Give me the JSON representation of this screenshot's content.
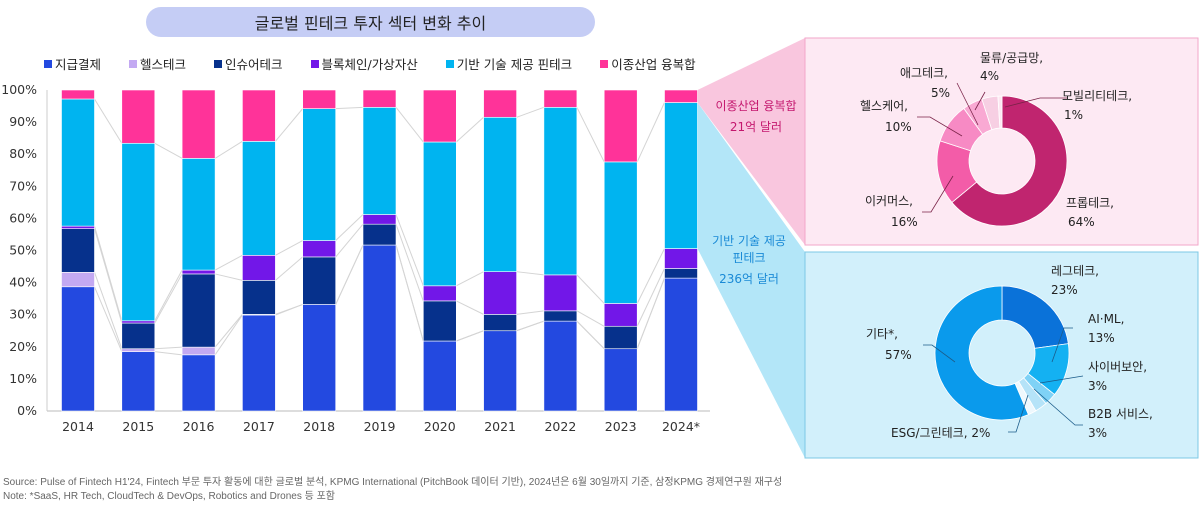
{
  "title": "글로벌 핀테크 투자 섹터 변화 추이",
  "legend": [
    {
      "label": "지급결제",
      "color": "#2349e0"
    },
    {
      "label": "헬스테크",
      "color": "#c3a9f2"
    },
    {
      "label": "인슈어테크",
      "color": "#06318c"
    },
    {
      "label": "블록체인/가상자산",
      "color": "#7217e8"
    },
    {
      "label": "기반 기술 제공 핀테크",
      "color": "#00b4f0"
    },
    {
      "label": "이종산업 융복합",
      "color": "#ff3399"
    }
  ],
  "chart_data": [
    {
      "type": "bar",
      "stacked": true,
      "title": "글로벌 핀테크 투자 섹터 변화 추이",
      "xlabel": "",
      "ylabel": "",
      "ylim": [
        0,
        100
      ],
      "yticks": [
        "0%",
        "10%",
        "20%",
        "30%",
        "40%",
        "50%",
        "60%",
        "70%",
        "80%",
        "90%",
        "100%"
      ],
      "categories": [
        "2014",
        "2015",
        "2016",
        "2017",
        "2018",
        "2019",
        "2020",
        "2021",
        "2022",
        "2023",
        "2024*"
      ],
      "series": [
        {
          "name": "지급결제",
          "values": [
            38.7,
            18.5,
            17.5,
            29.9,
            33.2,
            51.7,
            21.8,
            25.0,
            28.0,
            19.4,
            41.4
          ]
        },
        {
          "name": "헬스테크",
          "values": [
            4.5,
            0.9,
            2.4,
            0.2,
            0,
            0,
            0,
            0,
            0,
            0,
            0
          ]
        },
        {
          "name": "인슈어테크",
          "values": [
            13.6,
            8.0,
            22.8,
            10.6,
            14.8,
            6.5,
            12.5,
            5.1,
            3.2,
            7.0,
            3.0
          ]
        },
        {
          "name": "블록체인/가상자산",
          "values": [
            0.8,
            0.7,
            1.2,
            7.8,
            5.1,
            3.0,
            4.7,
            13.3,
            11.2,
            7.1,
            6.2
          ]
        },
        {
          "name": "기반 기술 제공 핀테크",
          "values": [
            39.6,
            55.3,
            34.8,
            35.5,
            41.1,
            33.4,
            44.8,
            48.1,
            52.2,
            44.1,
            45.5
          ]
        },
        {
          "name": "이종산업 융복합",
          "values": [
            2.8,
            16.6,
            21.3,
            16.0,
            5.8,
            5.4,
            16.2,
            8.5,
            5.4,
            22.4,
            3.9
          ]
        }
      ],
      "legend_position": "top",
      "grid": false
    },
    {
      "type": "pie",
      "donut": true,
      "title": "이종산업 융복합 21억 달러",
      "labels": [
        "프롭테크",
        "이커머스",
        "헬스케어",
        "애그테크",
        "물류/공급망",
        "모빌리티테크"
      ],
      "values": [
        64,
        16,
        10,
        5,
        4,
        1
      ],
      "colors": [
        "#c0256f",
        "#f35ca8",
        "#f78ac4",
        "#f9a9d3",
        "#f7cfe3",
        "#fde8f2"
      ]
    },
    {
      "type": "pie",
      "donut": true,
      "title": "기반 기술 제공 핀테크 236억 달러",
      "labels": [
        "레그테크",
        "AI·ML",
        "사이버보안",
        "B2B 서비스",
        "ESG/그린테크",
        "기타*"
      ],
      "values": [
        23,
        13,
        3,
        3,
        2,
        57
      ],
      "colors": [
        "#0a72d9",
        "#14b1f2",
        "#7fd2f6",
        "#b5e3f8",
        "#eef8fd",
        "#0a9aec"
      ]
    }
  ],
  "callouts": {
    "pink_line1": "이종산업 융복합",
    "pink_line2": "21억 달러",
    "blue_line1": "기반 기술 제공",
    "blue_line2": "핀테크",
    "blue_line3": "236억 달러"
  },
  "pie_labels": {
    "pink": [
      {
        "name": "물류/공급망,",
        "pct": "4%"
      },
      {
        "name": "애그테크,",
        "pct": "5%"
      },
      {
        "name": "모빌리티테크,",
        "pct": "1%"
      },
      {
        "name": "헬스케어,",
        "pct": "10%"
      },
      {
        "name": "이커머스,",
        "pct": "16%"
      },
      {
        "name": "프롭테크,",
        "pct": "64%"
      }
    ],
    "blue": [
      {
        "name": "레그테크,",
        "pct": "23%"
      },
      {
        "name": "AI·ML,",
        "pct": "13%"
      },
      {
        "name": "기타*,",
        "pct": "57%"
      },
      {
        "name": "사이버보안,",
        "pct": "3%"
      },
      {
        "name": "B2B 서비스,",
        "pct": "3%"
      },
      {
        "name": "ESG/그린테크, 2%",
        "pct": ""
      }
    ]
  },
  "footer": {
    "source": "Source: Pulse of Fintech H1'24, Fintech 부문 투자 활동에 대한 글로벌 분석, KPMG International (PitchBook 데이터 기반), 2024년은 6월 30일까지 기준, 삼정KPMG 경제연구원 재구성",
    "note": "Note: *SaaS, HR Tech, CloudTech & DevOps, Robotics and Drones 등 포함"
  }
}
